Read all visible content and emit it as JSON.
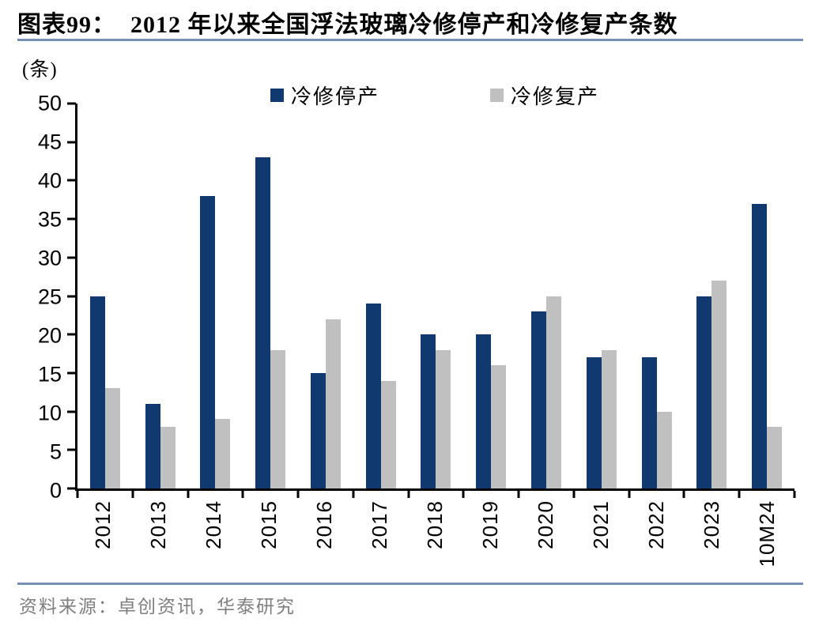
{
  "header": {
    "chart_label": "图表99：",
    "title": "2012 年以来全国浮法玻璃冷修停产和冷修复产条数"
  },
  "chart_data": {
    "type": "bar",
    "title": "2012 年以来全国浮法玻璃冷修停产和冷修复产条数",
    "unit_label": "(条)",
    "categories": [
      "2012",
      "2013",
      "2014",
      "2015",
      "2016",
      "2017",
      "2018",
      "2019",
      "2020",
      "2021",
      "2022",
      "2023",
      "10M24"
    ],
    "series": [
      {
        "name": "冷修停产",
        "color": "#10396F",
        "values": [
          25,
          11,
          38,
          43,
          15,
          24,
          20,
          20,
          23,
          17,
          17,
          25,
          37
        ]
      },
      {
        "name": "冷修复产",
        "color": "#C0C0C0",
        "values": [
          13,
          8,
          9,
          18,
          22,
          14,
          18,
          16,
          25,
          18,
          10,
          27,
          8
        ]
      }
    ],
    "ylim": [
      0,
      50
    ],
    "ytick_step": 5,
    "yticks": [
      0,
      5,
      10,
      15,
      20,
      25,
      30,
      35,
      40,
      45,
      50
    ],
    "grid": false,
    "legend_position": "top-center"
  },
  "footer": {
    "source": "资料来源：卓创资讯，华泰研究"
  },
  "colors": {
    "rule_line": "#7590B2",
    "axis": "#000000",
    "bar_blue": "#10396F",
    "bar_gray": "#C0C0C0",
    "source_text": "#7F7F7F",
    "title_text": "#000000"
  }
}
